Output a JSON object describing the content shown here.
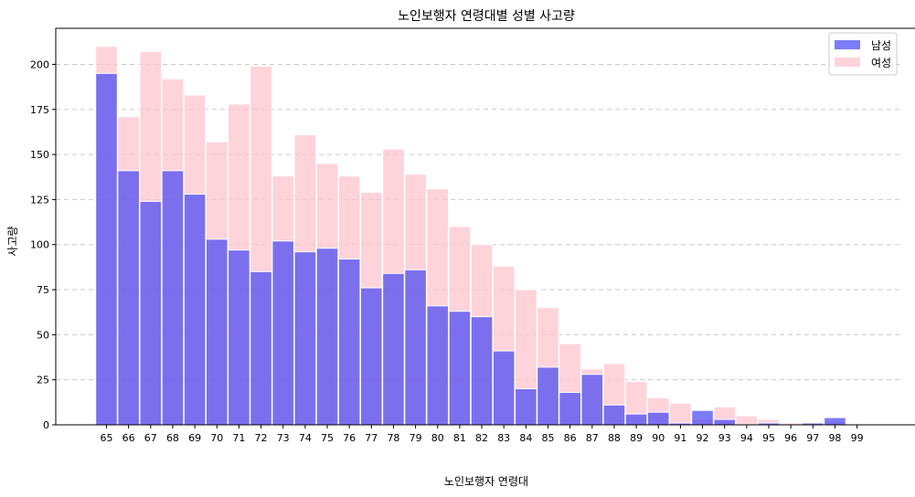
{
  "chart_data": {
    "type": "bar",
    "title": "노인보행자 연령대별 성별 사고량",
    "xlabel": "노인보행자 연령대",
    "ylabel": "사고량",
    "categories": [
      "65",
      "66",
      "67",
      "68",
      "69",
      "70",
      "71",
      "72",
      "73",
      "74",
      "75",
      "76",
      "77",
      "78",
      "79",
      "80",
      "81",
      "82",
      "83",
      "84",
      "85",
      "86",
      "87",
      "88",
      "89",
      "90",
      "91",
      "92",
      "93",
      "94",
      "95",
      "96",
      "97",
      "98",
      "99"
    ],
    "series": [
      {
        "name": "남성",
        "color": "#4444f7",
        "opacity": 0.7,
        "values": [
          195,
          141,
          124,
          141,
          128,
          103,
          97,
          85,
          102,
          96,
          98,
          92,
          76,
          84,
          86,
          66,
          63,
          60,
          41,
          20,
          32,
          18,
          28,
          11,
          6,
          7,
          1,
          8,
          3,
          0,
          1,
          0,
          1,
          4,
          0
        ]
      },
      {
        "name": "여성",
        "color": "#ffc0cb",
        "opacity": 0.7,
        "values": [
          210,
          171,
          207,
          192,
          183,
          157,
          178,
          199,
          138,
          161,
          145,
          138,
          129,
          153,
          139,
          131,
          110,
          100,
          88,
          75,
          65,
          45,
          31,
          34,
          24,
          15,
          12,
          3,
          10,
          5,
          3,
          1,
          1,
          2,
          0
        ]
      }
    ],
    "ylim": [
      0,
      220
    ],
    "yticks": [
      0,
      25,
      50,
      75,
      100,
      125,
      150,
      175,
      200
    ],
    "grid": "y-dashed",
    "legend": "top-right"
  }
}
